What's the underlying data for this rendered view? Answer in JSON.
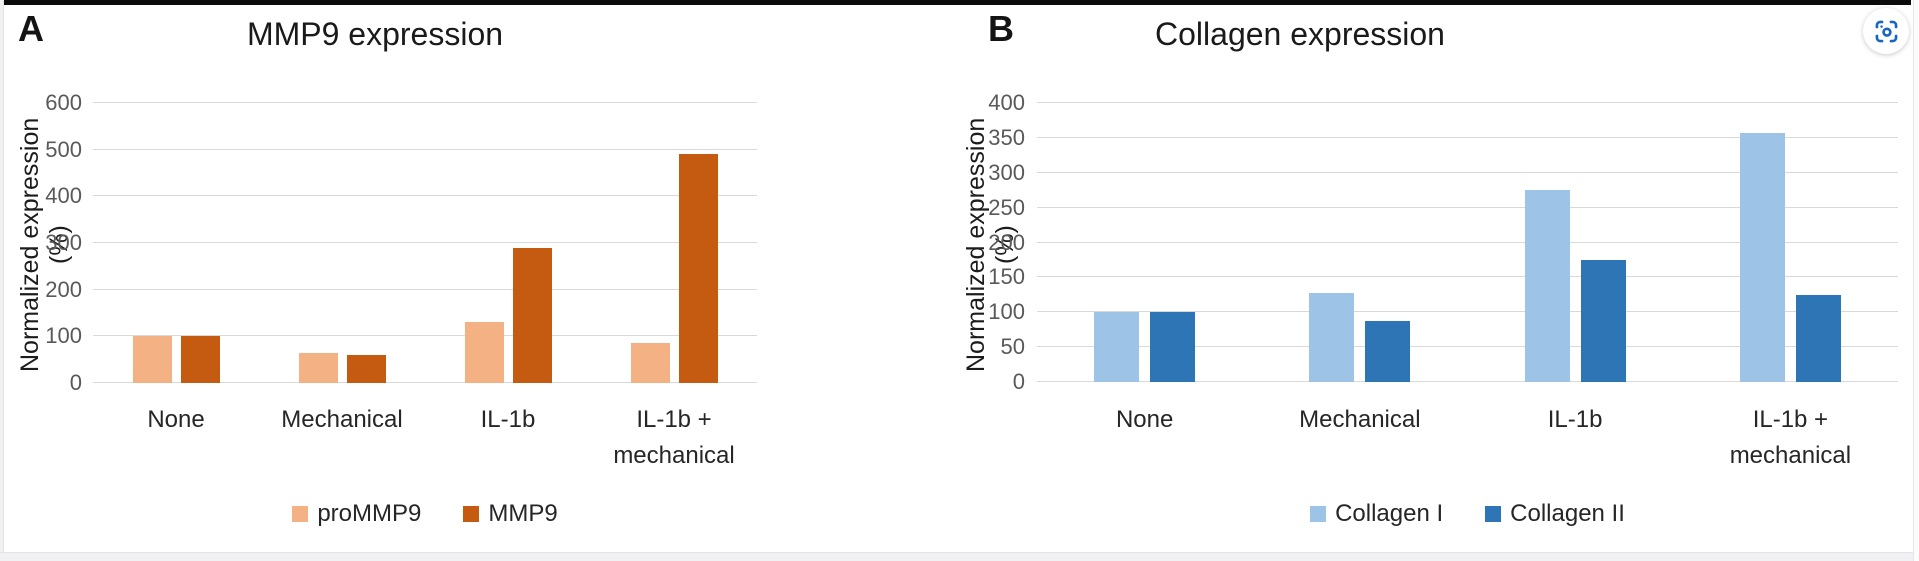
{
  "page": {
    "background": "#ffffff",
    "top_bar_color": "#0b0b0b"
  },
  "overlay": {
    "visual_search_icon": "visual-search",
    "icon_color": "#1766C2"
  },
  "charts": [
    {
      "panel_letter": "A",
      "title": "MMP9 expression",
      "ylabel": "Normalized expression (%)",
      "chart_data": {
        "type": "bar",
        "categories": [
          "None",
          "Mechanical",
          "IL-1b",
          "IL-1b + mechanical"
        ],
        "series": [
          {
            "name": "proMMP9",
            "color": "#F4B183",
            "values": [
              100,
              65,
              130,
              85
            ]
          },
          {
            "name": "MMP9",
            "color": "#C55A11",
            "values": [
              100,
              60,
              290,
              490
            ]
          }
        ],
        "title": "MMP9 expression",
        "xlabel": "",
        "ylabel": "Normalized expression (%)",
        "ylim": [
          0,
          600
        ],
        "ytick_step": 100,
        "grid": true,
        "gridline_color": "#d9d9d9",
        "tick_label_color": "#595959",
        "legend_position": "bottom"
      }
    },
    {
      "panel_letter": "B",
      "title": "Collagen expression",
      "ylabel": "Normalized expression (%)",
      "chart_data": {
        "type": "bar",
        "categories": [
          "None",
          "Mechanical",
          "IL-1b",
          "IL-1b + mechanical"
        ],
        "series": [
          {
            "name": "Collagen I",
            "color": "#9DC3E6",
            "values": [
              100,
              128,
              275,
              357
            ]
          },
          {
            "name": "Collagen II",
            "color": "#2E75B6",
            "values": [
              100,
              88,
              175,
              125
            ]
          }
        ],
        "title": "Collagen expression",
        "xlabel": "",
        "ylabel": "Normalized expression (%)",
        "ylim": [
          0,
          400
        ],
        "ytick_step": 50,
        "grid": true,
        "gridline_color": "#d9d9d9",
        "tick_label_color": "#595959",
        "legend_position": "bottom"
      }
    }
  ]
}
